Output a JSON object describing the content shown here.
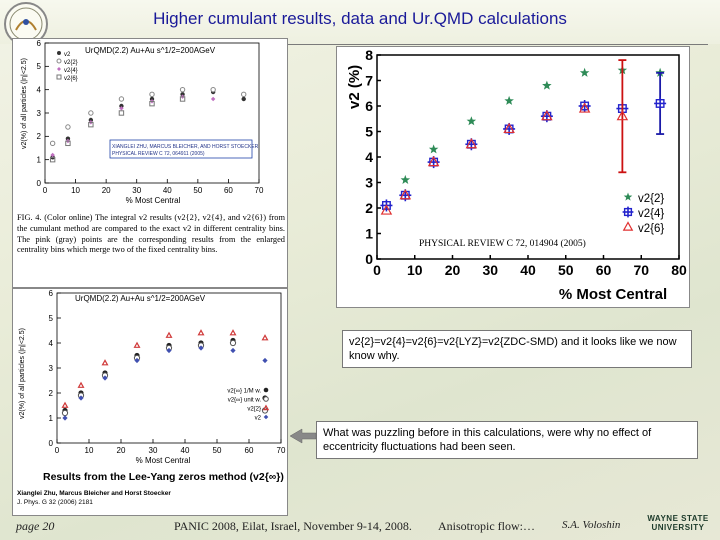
{
  "slide": {
    "title": "Higher cumulant results, data and Ur.QMD calculations",
    "logo_text": "PANIC 2008",
    "footer": {
      "page": "page  20",
      "conference": "PANIC 2008, Eilat, Israel, November 9-14, 2008.",
      "topic": "Anisotropic flow:…",
      "author": "S.A. Voloshin",
      "university_logo": [
        "WAYNE STATE",
        "UNIVERSITY"
      ]
    }
  },
  "callouts": {
    "relation": "v2{2}=v2{4}=v2{6}=v2{LYZ}=v2{ZDC-SMD)  and it looks like we now know why.",
    "puzzle": "What was puzzling before in this calculations, were why no effect of eccentricity fluctuations had been seen."
  },
  "panel_top_left": {
    "header": "UrQMD(2.2) Au+Au s^1/2=200AGeV",
    "ylabel": "v2(%) of all particles (|η|<2.5)",
    "xlabel": "% Most Central",
    "ref_box": [
      "XIANGLEI ZHU, MARCUS BLEICHER, AND HORST STOECKER",
      "PHYSICAL REVIEW C 72, 064911 (2005)"
    ],
    "legend": [
      "v2",
      "v2{2}",
      "v2{4}",
      "v2{6}"
    ],
    "caption": "FIG. 4. (Color online) The integral v2 results (v2{2}, v2{4}, and v2{6}) from the cumulant method are compared to the exact v2 in different centrality bins. The pink (gray) points are the corresponding results from the enlarged centrality bins which merge two of the fixed centrality bins."
  },
  "panel_bottom_left": {
    "header": "UrQMD(2.2) Au+Au s^1/2=200AGeV",
    "ylabel": "v2(%) of all particles (|η|<2.5)",
    "xlabel": "% Most Central",
    "legend": [
      "v2{∞} 1/M w.",
      "v2{∞} unit w.",
      "v2{2}",
      "v2"
    ],
    "caption_title": "Results from the Lee-Yang zeros method (v2{∞})",
    "caption_authors": "Xianglei Zhu, Marcus Bleicher and Horst Stoecker",
    "caption_ref": "J. Phys. G 32 (2006) 2181"
  },
  "panel_data": {
    "ref": "PHYSICAL REVIEW C 72, 014904 (2005)",
    "legend": [
      "v2{2}",
      "v2{4}",
      "v2{6}"
    ],
    "colors": {
      "v2{2}": "#2e8b57",
      "v2{4}": "#2222cc",
      "v2{6}": "#e03030",
      "err_red": "#cc1111",
      "err_blue": "#1a1aa8"
    }
  },
  "chart_data": [
    {
      "type": "scatter",
      "title": "",
      "xlabel": "% Most Central",
      "ylabel": "v2 (%)",
      "xlim": [
        0,
        80
      ],
      "ylim": [
        0,
        8
      ],
      "x_ticks": [
        0,
        10,
        20,
        30,
        40,
        50,
        60,
        70,
        80
      ],
      "y_ticks": [
        0,
        1,
        2,
        3,
        4,
        5,
        6,
        7,
        8
      ],
      "legend_position": "bottom-right",
      "grid": false,
      "series": [
        {
          "name": "v2{2}",
          "marker": "star",
          "x": [
            2.5,
            7.5,
            15,
            25,
            35,
            45,
            55,
            65,
            75
          ],
          "y": [
            2.1,
            3.1,
            4.3,
            5.4,
            6.2,
            6.8,
            7.3,
            7.4,
            7.3
          ]
        },
        {
          "name": "v2{4}",
          "marker": "cross-square",
          "x": [
            2.5,
            7.5,
            15,
            25,
            35,
            45,
            55,
            65,
            75
          ],
          "y": [
            2.1,
            2.5,
            3.8,
            4.5,
            5.1,
            5.6,
            6.0,
            5.9,
            6.1
          ],
          "y_err": [
            0.1,
            0.1,
            0.1,
            0.1,
            0.1,
            0.1,
            0.15,
            0.3,
            1.2
          ]
        },
        {
          "name": "v2{6}",
          "marker": "triangle",
          "x": [
            2.5,
            7.5,
            15,
            25,
            35,
            45,
            55,
            65
          ],
          "y": [
            1.9,
            2.5,
            3.8,
            4.5,
            5.1,
            5.6,
            5.9,
            5.6
          ],
          "y_err": [
            0.1,
            0.1,
            0.1,
            0.1,
            0.1,
            0.1,
            0.2,
            2.2
          ]
        }
      ]
    },
    {
      "type": "scatter",
      "title": "",
      "xlabel": "% Most Central",
      "ylabel": "v2(%) of all particles (|η|<2.5)",
      "xlim": [
        0,
        70
      ],
      "ylim": [
        0,
        6
      ],
      "x_ticks": [
        0,
        10,
        20,
        30,
        40,
        50,
        60,
        70
      ],
      "y_ticks": [
        0,
        1,
        2,
        3,
        4,
        5,
        6
      ],
      "legend_position": "top-right",
      "series": [
        {
          "name": "v2",
          "x": [
            2.5,
            7.5,
            15,
            25,
            35,
            45,
            55,
            65
          ],
          "y": [
            1.1,
            1.9,
            2.7,
            3.3,
            3.6,
            3.8,
            3.9,
            3.6
          ]
        },
        {
          "name": "v2{2}",
          "x": [
            2.5,
            7.5,
            15,
            25,
            35,
            45,
            55,
            65
          ],
          "y": [
            1.7,
            2.4,
            3.0,
            3.6,
            3.8,
            4.0,
            4.0,
            3.8
          ]
        },
        {
          "name": "v2{4}",
          "x": [
            2.5,
            7.5,
            15,
            25,
            35,
            45,
            55
          ],
          "y": [
            1.2,
            1.8,
            2.6,
            3.2,
            3.5,
            3.7,
            3.6
          ]
        },
        {
          "name": "v2{6}",
          "x": [
            2.5,
            7.5,
            15,
            25,
            35,
            45
          ],
          "y": [
            1.0,
            1.7,
            2.5,
            3.0,
            3.4,
            3.6
          ]
        }
      ]
    },
    {
      "type": "scatter",
      "title": "",
      "xlabel": "% Most Central",
      "ylabel": "v2(%) of all particles (|η|<2.5)",
      "xlim": [
        0,
        70
      ],
      "ylim": [
        0,
        6
      ],
      "x_ticks": [
        0,
        10,
        20,
        30,
        40,
        50,
        60,
        70
      ],
      "y_ticks": [
        0,
        1,
        2,
        3,
        4,
        5,
        6
      ],
      "legend_position": "bottom-right",
      "series": [
        {
          "name": "v2{∞} 1/M w.",
          "x": [
            2.5,
            7.5,
            15,
            25,
            35,
            45,
            55,
            65
          ],
          "y": [
            1.3,
            2.0,
            2.8,
            3.5,
            3.9,
            4.0,
            4.1,
            1.8
          ]
        },
        {
          "name": "v2{∞} unit w.",
          "x": [
            2.5,
            7.5,
            15,
            25,
            35,
            45,
            55,
            65
          ],
          "y": [
            1.2,
            1.9,
            2.7,
            3.4,
            3.8,
            3.9,
            4.0,
            1.3
          ]
        },
        {
          "name": "v2{2}",
          "x": [
            2.5,
            7.5,
            15,
            25,
            35,
            45,
            55,
            65
          ],
          "y": [
            1.5,
            2.3,
            3.2,
            3.9,
            4.3,
            4.4,
            4.4,
            4.2
          ]
        },
        {
          "name": "v2",
          "x": [
            2.5,
            7.5,
            15,
            25,
            35,
            45,
            55,
            65
          ],
          "y": [
            1.0,
            1.8,
            2.6,
            3.3,
            3.7,
            3.8,
            3.7,
            3.3
          ]
        }
      ]
    }
  ]
}
